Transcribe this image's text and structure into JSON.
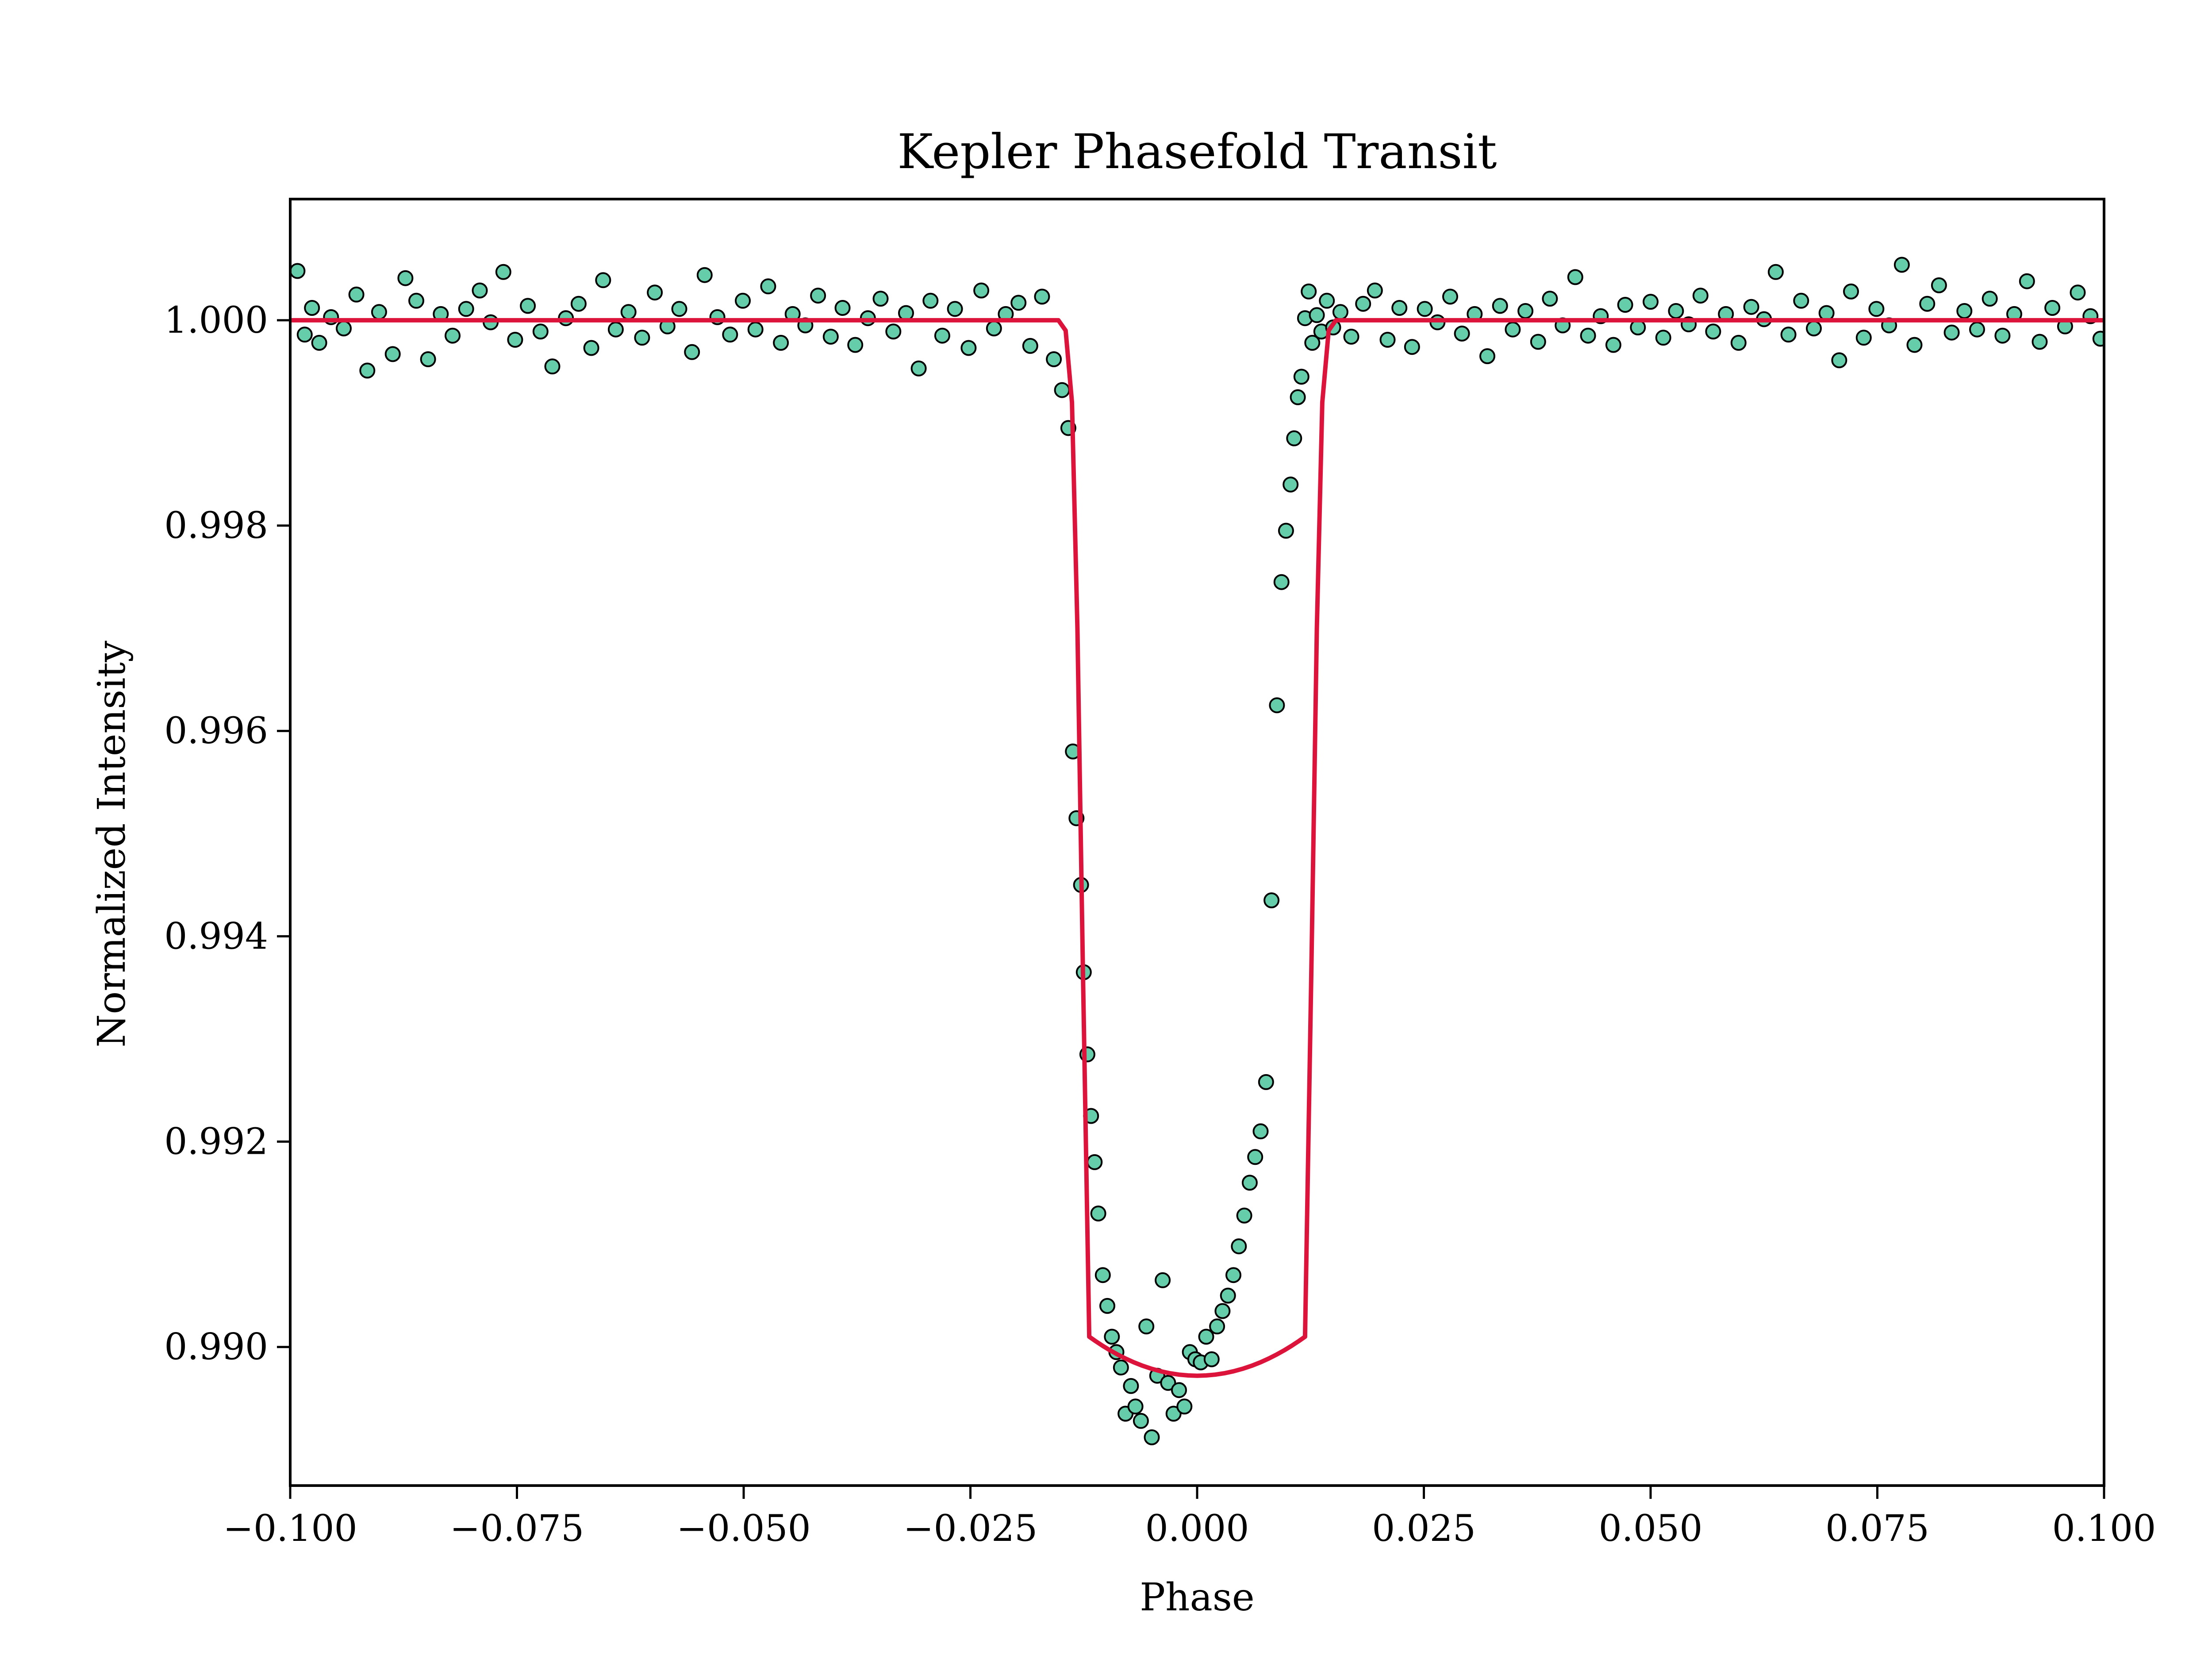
{
  "chart_data": {
    "type": "scatter",
    "title": "Kepler Phasefold Transit",
    "xlabel": "Phase",
    "ylabel": "Normalized Intensity",
    "xlim": [
      -0.1,
      0.1
    ],
    "ylim": [
      0.98865,
      1.00118
    ],
    "xticks": [
      -0.1,
      -0.075,
      -0.05,
      -0.025,
      0.0,
      0.025,
      0.05,
      0.075,
      0.1
    ],
    "xtick_labels": [
      "−0.100",
      "−0.075",
      "−0.050",
      "−0.025",
      "0.000",
      "0.025",
      "0.050",
      "0.075",
      "0.100"
    ],
    "yticks": [
      0.99,
      0.992,
      0.994,
      0.996,
      0.998,
      1.0
    ],
    "ytick_labels": [
      "0.990",
      "0.992",
      "0.994",
      "0.996",
      "0.998",
      "1.000"
    ],
    "grid": false,
    "legend": "none",
    "colors": {
      "points_fill": "#66cdaa",
      "points_edge": "#000000",
      "model_line": "#dc143c"
    },
    "series": [
      {
        "kind": "scatter",
        "x": [
          -0.0992,
          -0.0984,
          -0.0976,
          -0.0968,
          -0.0955,
          -0.0941,
          -0.0927,
          -0.0915,
          -0.0902,
          -0.0887,
          -0.0873,
          -0.0861,
          -0.0848,
          -0.0834,
          -0.0821,
          -0.0806,
          -0.0791,
          -0.0779,
          -0.0765,
          -0.0752,
          -0.0738,
          -0.0724,
          -0.0711,
          -0.0696,
          -0.0682,
          -0.0668,
          -0.0655,
          -0.0641,
          -0.0627,
          -0.0612,
          -0.0598,
          -0.0584,
          -0.0571,
          -0.0557,
          -0.0543,
          -0.0529,
          -0.0515,
          -0.0501,
          -0.0487,
          -0.0473,
          -0.0459,
          -0.0446,
          -0.0432,
          -0.0418,
          -0.0404,
          -0.0391,
          -0.0377,
          -0.0363,
          -0.0349,
          -0.0335,
          -0.0321,
          -0.0307,
          -0.0294,
          -0.0281,
          -0.0267,
          -0.0252,
          -0.0238,
          -0.0224,
          -0.0211,
          -0.0197,
          -0.0184,
          -0.0171,
          -0.0158,
          -0.0149,
          -0.0142,
          -0.0137,
          -0.0133,
          -0.0128,
          -0.0125,
          -0.0121,
          -0.0117,
          -0.0113,
          -0.0109,
          -0.0104,
          -0.0099,
          -0.0094,
          -0.0089,
          -0.0084,
          -0.0079,
          -0.0073,
          -0.0068,
          -0.0062,
          -0.0056,
          -0.005,
          -0.0044,
          -0.0038,
          -0.0032,
          -0.0026,
          -0.002,
          -0.0014,
          -0.0008,
          -0.0002,
          0.0004,
          0.001,
          0.0016,
          0.0022,
          0.0028,
          0.0034,
          0.004,
          0.0046,
          0.0052,
          0.0058,
          0.0064,
          0.007,
          0.0076,
          0.0082,
          0.0088,
          0.0093,
          0.0098,
          0.0103,
          0.0107,
          0.0111,
          0.0115,
          0.0119,
          0.0123,
          0.0127,
          0.0132,
          0.0137,
          0.0143,
          0.015,
          0.0158,
          0.017,
          0.0183,
          0.0196,
          0.021,
          0.0223,
          0.0237,
          0.0251,
          0.0265,
          0.0279,
          0.0292,
          0.0306,
          0.032,
          0.0334,
          0.0348,
          0.0362,
          0.0376,
          0.0389,
          0.0403,
          0.0417,
          0.0431,
          0.0445,
          0.0459,
          0.0472,
          0.0486,
          0.05,
          0.0514,
          0.0528,
          0.0542,
          0.0555,
          0.0569,
          0.0583,
          0.0597,
          0.0611,
          0.0625,
          0.0638,
          0.0652,
          0.0666,
          0.068,
          0.0694,
          0.0708,
          0.0721,
          0.0735,
          0.0749,
          0.0763,
          0.0777,
          0.0791,
          0.0805,
          0.0818,
          0.0832,
          0.0846,
          0.086,
          0.0874,
          0.0888,
          0.0901,
          0.0915,
          0.0929,
          0.0943,
          0.0957,
          0.0971,
          0.0985,
          0.0996
        ],
        "y": [
          1.00048,
          0.99986,
          1.00012,
          0.99978,
          1.00003,
          0.99992,
          1.00025,
          0.99951,
          1.00008,
          0.99967,
          1.00041,
          1.00019,
          0.99962,
          1.00006,
          0.99985,
          1.00011,
          1.00029,
          0.99998,
          1.00047,
          0.99981,
          1.00014,
          0.99989,
          0.99955,
          1.00002,
          1.00016,
          0.99973,
          1.00039,
          0.99991,
          1.00008,
          0.99983,
          1.00027,
          0.99994,
          1.00011,
          0.99969,
          1.00044,
          1.00003,
          0.99986,
          1.00019,
          0.99991,
          1.00033,
          0.99978,
          1.00006,
          0.99995,
          1.00024,
          0.99984,
          1.00012,
          0.99976,
          1.00002,
          1.00021,
          0.99989,
          1.00007,
          0.99953,
          1.00019,
          0.99985,
          1.00011,
          0.99973,
          1.00029,
          0.99992,
          1.00006,
          1.00017,
          0.99975,
          1.00023,
          0.99962,
          0.99932,
          0.99895,
          0.9958,
          0.99515,
          0.9945,
          0.99365,
          0.99285,
          0.99225,
          0.9918,
          0.9913,
          0.9907,
          0.9904,
          0.9901,
          0.98995,
          0.9898,
          0.98935,
          0.98962,
          0.98942,
          0.98928,
          0.9902,
          0.98912,
          0.98972,
          0.99065,
          0.98965,
          0.98935,
          0.98958,
          0.98942,
          0.98995,
          0.98988,
          0.98985,
          0.9901,
          0.98988,
          0.9902,
          0.99035,
          0.9905,
          0.9907,
          0.99098,
          0.99128,
          0.9916,
          0.99185,
          0.9921,
          0.99258,
          0.99435,
          0.99625,
          0.99745,
          0.99795,
          0.9984,
          0.99885,
          0.99925,
          0.99945,
          1.00002,
          1.00028,
          0.99978,
          1.00005,
          0.99989,
          1.00019,
          0.99993,
          1.00008,
          0.99984,
          1.00016,
          1.00029,
          0.99981,
          1.00012,
          0.99974,
          1.00011,
          0.99998,
          1.00023,
          0.99987,
          1.00006,
          0.99965,
          1.00014,
          0.99991,
          1.00009,
          0.99979,
          1.00021,
          0.99995,
          1.00042,
          0.99985,
          1.00004,
          0.99976,
          1.00015,
          0.99993,
          1.00018,
          0.99983,
          1.00009,
          0.99996,
          1.00024,
          0.99989,
          1.00006,
          0.99978,
          1.00013,
          1.00001,
          1.00047,
          0.99986,
          1.00019,
          0.99992,
          1.00007,
          0.99961,
          1.00028,
          0.99983,
          1.00011,
          0.99995,
          1.00054,
          0.99976,
          1.00016,
          1.00034,
          0.99988,
          1.00009,
          0.99991,
          1.00021,
          0.99985,
          1.00006,
          1.00038,
          0.99979,
          1.00012,
          0.99994,
          1.00027,
          1.00004,
          0.99982
        ]
      },
      {
        "kind": "line",
        "description_label": "",
        "x": [
          -0.1,
          -0.0153,
          -0.0145,
          -0.0138,
          -0.0132,
          -0.0126,
          -0.0119,
          -0.0112,
          -0.0104,
          -0.0096,
          -0.0088,
          -0.0079,
          -0.007,
          -0.006,
          -0.005,
          -0.004,
          -0.003,
          -0.002,
          -0.001,
          0.0,
          0.001,
          0.002,
          0.003,
          0.004,
          0.005,
          0.006,
          0.007,
          0.0079,
          0.0088,
          0.0096,
          0.0104,
          0.0112,
          0.0119,
          0.0126,
          0.0132,
          0.0138,
          0.0145,
          0.0153,
          0.1
        ],
        "y": [
          1.0,
          1.0,
          0.9999,
          0.9992,
          0.997,
          0.9937,
          0.99,
          0.99,
          0.99,
          0.99,
          0.99,
          0.99,
          0.99,
          0.99,
          0.99,
          0.99,
          0.99,
          0.99,
          0.99,
          0.99,
          0.99,
          0.99,
          0.99,
          0.99,
          0.99,
          0.99,
          0.99,
          0.99,
          0.99,
          0.99,
          0.99,
          0.99,
          0.99,
          0.9937,
          0.997,
          0.9992,
          0.9999,
          1.0,
          1.0
        ]
      }
    ]
  }
}
